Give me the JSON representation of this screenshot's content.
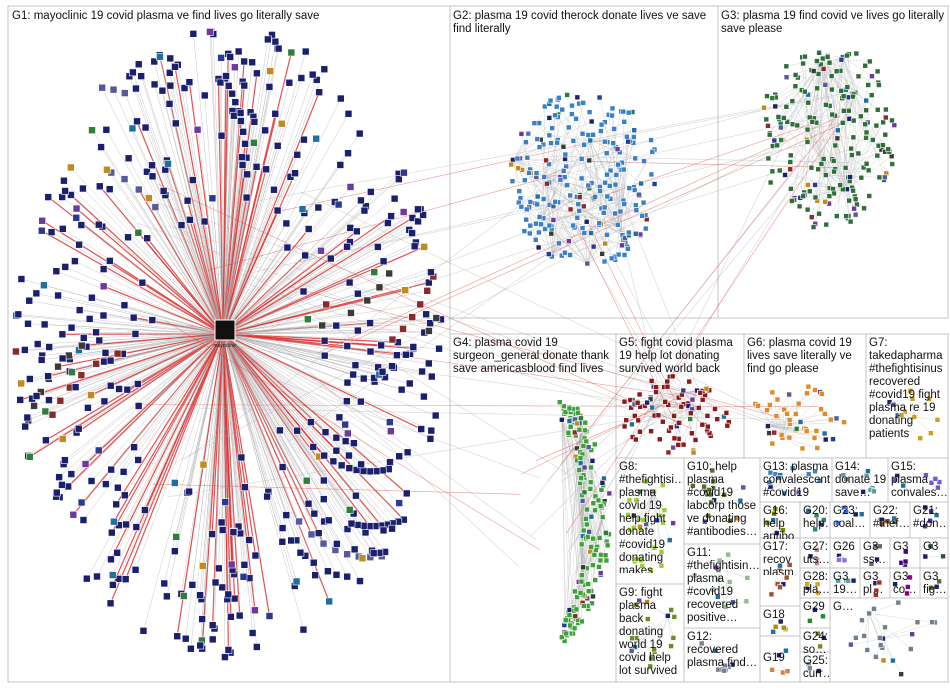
{
  "groups": [
    {
      "id": "G1",
      "label": "G1: mayoclinic 19 covid plasma ve find lives go literally save",
      "hub": "mayoclinic",
      "color": "#1a1f6e"
    },
    {
      "id": "G2",
      "label": "G2: plasma 19 covid therock donate lives ve save find literally",
      "color": "#3b7fc4"
    },
    {
      "id": "G3",
      "label": "G3: plasma 19 find covid ve lives go literally save please",
      "color": "#2f6e3a"
    },
    {
      "id": "G4",
      "label": "G4: plasma covid 19 surgeon_general donate thank save americasblood find lives",
      "color": "#3da03d"
    },
    {
      "id": "G5",
      "label": "G5: fight covid plasma 19 help lot donating survived world back",
      "color": "#8b1a1a"
    },
    {
      "id": "G6",
      "label": "G6: plasma covid 19 lives save literally ve find go please",
      "color": "#e08a2a"
    },
    {
      "id": "G7",
      "label": "G7: takedapharma #thefightisinus recovered #covid19 fight plasma re 19 donating patients",
      "color": "#c9a020"
    },
    {
      "id": "G8",
      "label": "G8: #thefightisi… plasma covid 19 help fight donate #covid19 donating makes",
      "color": "#9acd32"
    },
    {
      "id": "G9",
      "label": "G9: fight plasma back donating world 19 covid help lot survived",
      "color": "#6b8e23"
    },
    {
      "id": "G10",
      "label": "G10: help plasma #covid19 labcorp those ve donating #antibodies…",
      "color": "#556b2f"
    },
    {
      "id": "G11",
      "label": "G11: #thefightisin… plasma #covid19 recovered positive…",
      "color": "#8fbc8f"
    },
    {
      "id": "G12",
      "label": "G12: recovered plasma find…",
      "color": "#708090"
    },
    {
      "id": "G13",
      "label": "G13: plasma convalescent #covid19",
      "color": "#4682b4"
    },
    {
      "id": "G14",
      "label": "G14: donate 19 save…",
      "color": "#5f9ea0"
    },
    {
      "id": "G15",
      "label": "G15: plasma convales…",
      "color": "#6a5acd"
    },
    {
      "id": "G16",
      "label": "G16: help antibo virus…",
      "color": "#808000"
    },
    {
      "id": "G17",
      "label": "G17: recov plasm…",
      "color": "#a0522d"
    },
    {
      "id": "G18",
      "label": "G18",
      "color": "#b8860b"
    },
    {
      "id": "G19",
      "label": "G19",
      "color": "#cd853f"
    },
    {
      "id": "G20",
      "label": "G20: help…",
      "color": "#2e8b57"
    },
    {
      "id": "G21",
      "label": "G21: #don…",
      "color": "#483d8b"
    },
    {
      "id": "G22",
      "label": "G22: #thef…",
      "color": "#8b4513"
    },
    {
      "id": "G23",
      "label": "G23: coal…",
      "color": "#4169e1"
    },
    {
      "id": "G24",
      "label": "G24: so…",
      "color": "#6b8e23"
    },
    {
      "id": "G25",
      "label": "G25: curr…",
      "color": "#778899"
    },
    {
      "id": "G26",
      "label": "G26",
      "color": "#9370db"
    },
    {
      "id": "G27",
      "label": "G27: uts…",
      "color": "#bc8f8f"
    },
    {
      "id": "G28",
      "label": "G28: pla…",
      "color": "#daa520"
    },
    {
      "id": "G29",
      "label": "G29",
      "color": "#228b22"
    },
    {
      "id": "G30",
      "label": "G3 ss…",
      "color": "#696969"
    },
    {
      "id": "G31",
      "label": "G3 iss…",
      "color": "#2f4f4f"
    },
    {
      "id": "G32",
      "label": "G3 co…",
      "color": "#8b008b"
    },
    {
      "id": "G33",
      "label": "G3 fig…",
      "color": "#556b2f"
    },
    {
      "id": "G34",
      "label": "G3 pl…",
      "color": "#a52a2a"
    },
    {
      "id": "G35",
      "label": "G3 19…",
      "color": "#5f9ea0"
    },
    {
      "id": "G36",
      "label": "G3",
      "color": "#4b0082"
    },
    {
      "id": "G37",
      "label": "G…",
      "color": "#708090"
    }
  ],
  "edge_colors": {
    "regular": "#b0b0b0",
    "reply": "#e03030"
  }
}
